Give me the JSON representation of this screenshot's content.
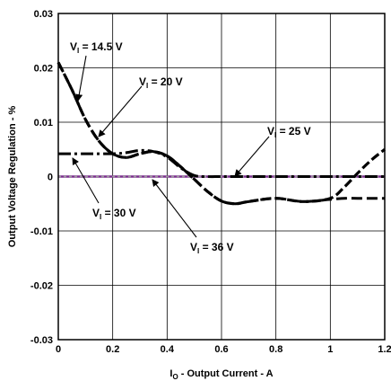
{
  "chart_data": {
    "type": "line",
    "xlabel": {
      "main": "I",
      "sub": "O",
      "rest": " - Output Current - A"
    },
    "ylabel": "Output Voltage Regulation - %",
    "xlim": [
      0,
      1.2
    ],
    "ylim": [
      -0.03,
      0.03
    ],
    "x_ticks": [
      "0",
      "0.2",
      "0.4",
      "0.6",
      "0.8",
      "1",
      "1.2"
    ],
    "y_ticks": [
      "0.03",
      "0.02",
      "0.01",
      "0",
      "-0.01",
      "-0.02",
      "-0.03"
    ],
    "grid": true,
    "legend": "none",
    "series": [
      {
        "name": "VI = 14.5 V",
        "label": {
          "main": "V",
          "sub": "I",
          "rest": " = 14.5 V"
        },
        "style": "dash-thick",
        "color": "#000000",
        "x": [
          0,
          0.05,
          0.1,
          0.15,
          0.2,
          0.25,
          0.3,
          0.35,
          0.4,
          0.45,
          0.5,
          0.55,
          0.6,
          0.65,
          0.7,
          0.8,
          0.9,
          1.0,
          1.05,
          1.1,
          1.15,
          1.2
        ],
        "y": [
          0.021,
          0.016,
          0.0105,
          0.0065,
          0.0042,
          0.0035,
          0.0042,
          0.0046,
          0.0038,
          0.0018,
          -0.0005,
          -0.0028,
          -0.0045,
          -0.005,
          -0.0046,
          -0.004,
          -0.0046,
          -0.004,
          -0.002,
          0.0006,
          0.003,
          0.005
        ]
      },
      {
        "name": "VI = 20 V",
        "label": {
          "main": "V",
          "sub": "I",
          "rest": " = 20 V"
        },
        "style": "dash",
        "color": "#000000",
        "x": [
          0,
          0.05,
          0.1,
          0.15,
          0.2,
          0.25,
          0.3,
          0.35,
          0.4,
          0.45,
          0.5,
          0.55,
          0.6,
          0.65,
          0.7,
          0.8,
          0.9,
          1.0,
          1.05,
          1.1,
          1.15,
          1.2
        ],
        "y": [
          0.021,
          0.016,
          0.0105,
          0.0065,
          0.0042,
          0.0035,
          0.0042,
          0.0046,
          0.0038,
          0.0018,
          -0.0005,
          -0.0028,
          -0.0045,
          -0.005,
          -0.0046,
          -0.004,
          -0.0046,
          -0.0042,
          -0.004,
          -0.004,
          -0.004,
          -0.004
        ]
      },
      {
        "name": "VI = 25 V",
        "label": {
          "main": "V",
          "sub": "I",
          "rest": " = 25 V"
        },
        "style": "dashdot",
        "color": "#000000",
        "x": [
          0,
          0.1,
          0.2,
          0.25,
          0.3,
          0.35,
          0.4,
          0.45,
          0.5,
          0.55,
          0.6,
          0.7,
          0.8,
          0.9,
          1.0,
          1.2
        ],
        "y": [
          0.0042,
          0.0042,
          0.0042,
          0.0044,
          0.0048,
          0.0046,
          0.0036,
          0.0016,
          0.0002,
          0.0,
          0.0,
          0.0,
          0.0,
          0.0,
          0.0,
          0.0
        ]
      },
      {
        "name": "VI = 30 V",
        "label": {
          "main": "V",
          "sub": "I",
          "rest": " = 30 V"
        },
        "style": "solid-purple",
        "color": "#7b2f8e",
        "x": [
          0,
          1.2
        ],
        "y": [
          0.0,
          0.0
        ]
      },
      {
        "name": "VI = 36 V",
        "label": {
          "main": "V",
          "sub": "I",
          "rest": " = 36 V"
        },
        "style": "dot-grey",
        "color": "#9a9a9a",
        "x": [
          0,
          1.2
        ],
        "y": [
          0.0,
          0.0
        ]
      }
    ]
  }
}
